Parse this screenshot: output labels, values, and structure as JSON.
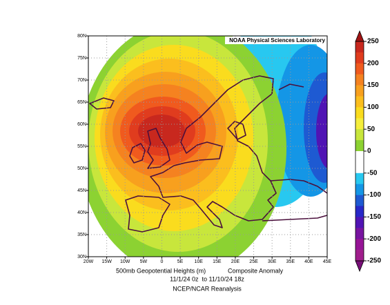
{
  "map": {
    "credit": "NOAA Physical Sciences Laboratory",
    "lat_labels": [
      "80N",
      "75N",
      "70N",
      "65N",
      "60N",
      "55N",
      "50N",
      "45N",
      "40N",
      "35N",
      "30N"
    ],
    "lon_labels": [
      "20W",
      "15W",
      "10W",
      "5W",
      "0",
      "5E",
      "10E",
      "15E",
      "20E",
      "25E",
      "30E",
      "35E",
      "40E",
      "45E"
    ]
  },
  "caption": {
    "variable": "500mb Geopotential Heights (m)",
    "kind": "Composite Anomaly",
    "period": "11/1/24 0z  to 11/10/24 18z",
    "source": "NCEP/NCAR Reanalysis"
  },
  "colorbar": {
    "ticks": [
      250,
      200,
      150,
      100,
      50,
      0,
      -50,
      -100,
      -150,
      -200,
      -250
    ],
    "colors": [
      "#c8281e",
      "#e03c1e",
      "#f05a1e",
      "#f58220",
      "#f8a01e",
      "#fbbe1e",
      "#fadc1e",
      "#f5ee3c",
      "#c8e63c",
      "#8cd232",
      "#ffffff",
      "#ffffff",
      "#28c8f0",
      "#1496e6",
      "#1e5ad2",
      "#2828c8",
      "#5014b4",
      "#7814a0",
      "#961496",
      "#a01e8c"
    ],
    "arrow_top": "#a01414",
    "arrow_bottom": "#780f78"
  }
}
